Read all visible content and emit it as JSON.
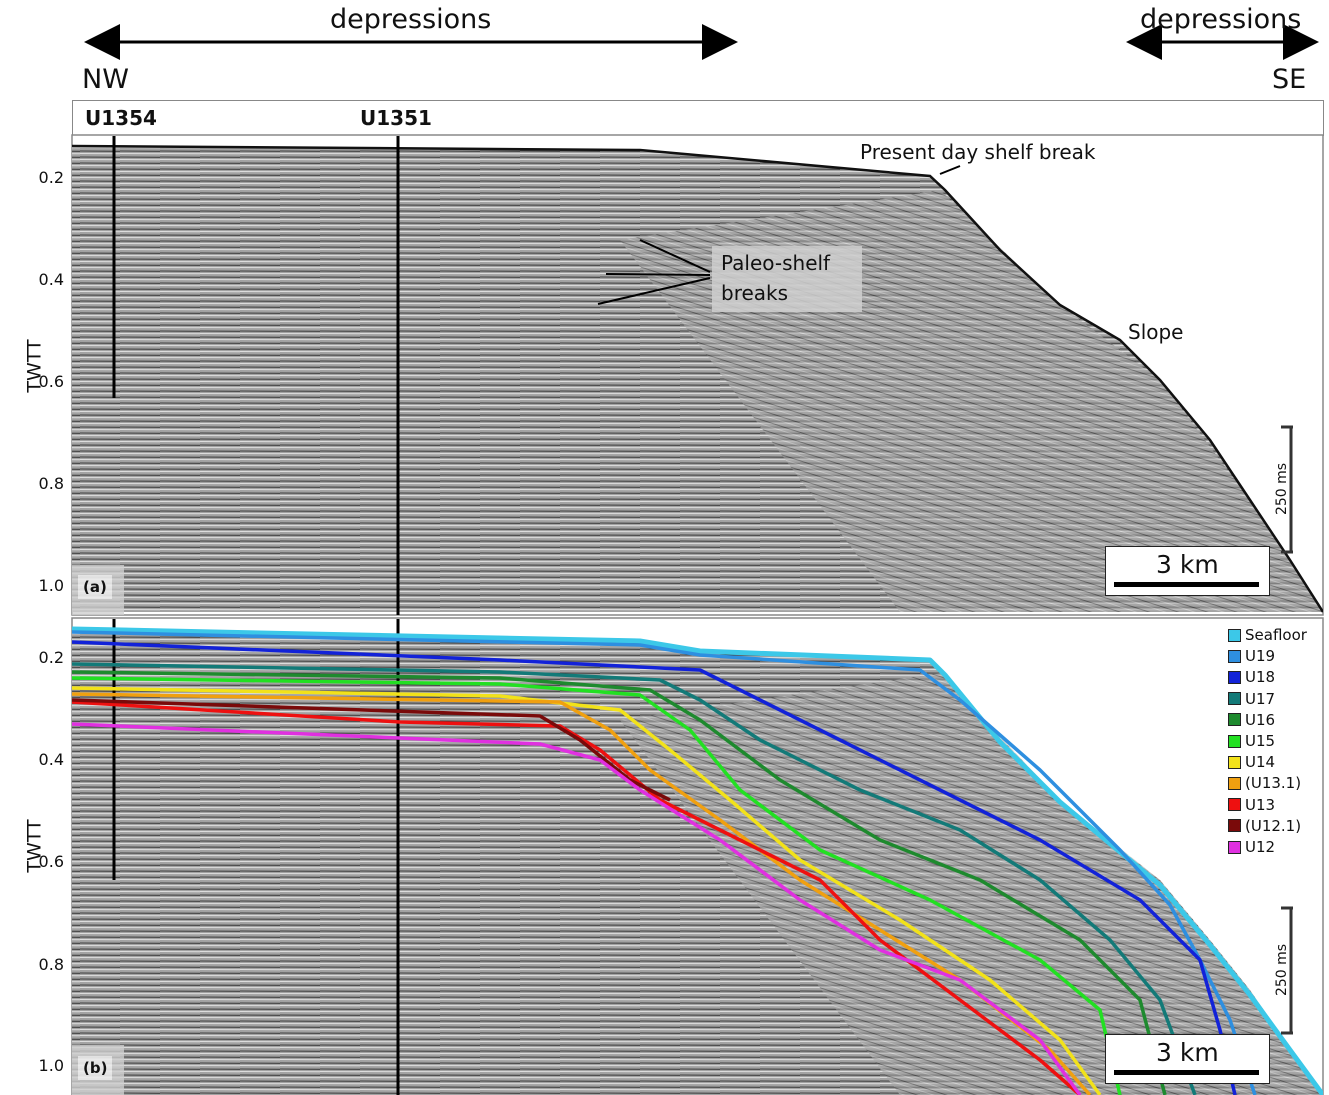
{
  "header": {
    "left_label": "depressions",
    "right_label": "depressions",
    "direction_left": "NW",
    "direction_right": "SE"
  },
  "wells": [
    {
      "name": "U1354"
    },
    {
      "name": "U1351"
    }
  ],
  "axis": {
    "title": "TWTT",
    "ticks": [
      "0.2",
      "0.4",
      "0.6",
      "0.8",
      "1.0"
    ]
  },
  "panel_a": {
    "tag": "(a)",
    "annotations": {
      "shelf_break": "Present day shelf break",
      "paleo_line1": "Paleo-shelf",
      "paleo_line2": "breaks",
      "slope": "Slope"
    },
    "scale_bar": "3 km",
    "vertical_scale": "250 ms"
  },
  "panel_b": {
    "tag": "(b)",
    "scale_bar": "3 km",
    "vertical_scale": "250 ms",
    "legend": [
      {
        "label": "Seafloor",
        "color": "#3cc8e8"
      },
      {
        "label": "U19",
        "color": "#2e8fe0"
      },
      {
        "label": "U18",
        "color": "#1222d8"
      },
      {
        "label": "U17",
        "color": "#137a78"
      },
      {
        "label": "U16",
        "color": "#1e8a2e"
      },
      {
        "label": "U15",
        "color": "#22e022"
      },
      {
        "label": "U14",
        "color": "#f2e21a"
      },
      {
        "label": "(U13.1)",
        "color": "#f0a010"
      },
      {
        "label": "U13",
        "color": "#ee1010"
      },
      {
        "label": "(U12.1)",
        "color": "#7a0a0a"
      },
      {
        "label": "U12",
        "color": "#e030e0"
      }
    ]
  }
}
